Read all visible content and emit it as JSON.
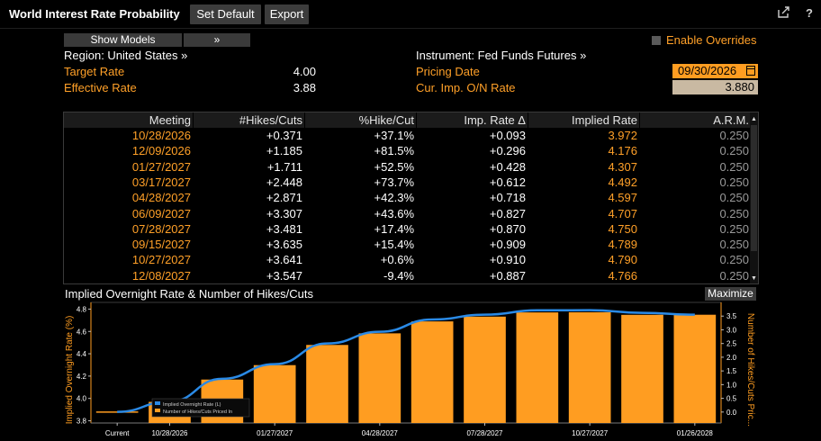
{
  "window": {
    "title": "World Interest Rate Probability",
    "buttons": {
      "set_default": "Set Default",
      "export": "Export"
    },
    "icons": [
      "export-icon",
      "help-icon"
    ],
    "help_glyph": "?"
  },
  "models": {
    "show_models": "Show Models",
    "expand": "»"
  },
  "overrides": {
    "label": "Enable Overrides",
    "checked": false
  },
  "summary": {
    "region_label": "Region: United States »",
    "target_rate_label": "Target Rate",
    "target_rate_value": "4.00",
    "effective_rate_label": "Effective Rate",
    "effective_rate_value": "3.88",
    "instrument_label": "Instrument: Fed Funds Futures »",
    "pricing_date_label": "Pricing Date",
    "pricing_date_value": "09/30/2026",
    "cur_imp_label": "Cur. Imp. O/N Rate",
    "cur_imp_value": "3.880"
  },
  "table": {
    "headers": [
      "Meeting",
      "#Hikes/Cuts",
      "%Hike/Cut",
      "Imp. Rate Δ",
      "Implied Rate",
      "A.R.M."
    ],
    "rows": [
      [
        "10/28/2026",
        "+0.371",
        "+37.1%",
        "+0.093",
        "3.972",
        "0.250"
      ],
      [
        "12/09/2026",
        "+1.185",
        "+81.5%",
        "+0.296",
        "4.176",
        "0.250"
      ],
      [
        "01/27/2027",
        "+1.711",
        "+52.5%",
        "+0.428",
        "4.307",
        "0.250"
      ],
      [
        "03/17/2027",
        "+2.448",
        "+73.7%",
        "+0.612",
        "4.492",
        "0.250"
      ],
      [
        "04/28/2027",
        "+2.871",
        "+42.3%",
        "+0.718",
        "4.597",
        "0.250"
      ],
      [
        "06/09/2027",
        "+3.307",
        "+43.6%",
        "+0.827",
        "4.707",
        "0.250"
      ],
      [
        "07/28/2027",
        "+3.481",
        "+17.4%",
        "+0.870",
        "4.750",
        "0.250"
      ],
      [
        "09/15/2027",
        "+3.635",
        "+15.4%",
        "+0.909",
        "4.789",
        "0.250"
      ],
      [
        "10/27/2027",
        "+3.641",
        "+0.6%",
        "+0.910",
        "4.790",
        "0.250"
      ],
      [
        "12/08/2027",
        "+3.547",
        "-9.4%",
        "+0.887",
        "4.766",
        "0.250"
      ]
    ]
  },
  "chart_panel": {
    "title": "Implied Overnight Rate & Number of Hikes/Cuts",
    "maximize": "Maximize"
  },
  "colors": {
    "accent": "#ffa028",
    "bar": "#ff9d21",
    "line": "#2a8ae6",
    "header_bg": "#1b1b1b"
  },
  "chart_data": {
    "type": "bar",
    "categories": [
      "Current",
      "10/28/2026",
      "12/09/2026",
      "01/27/2027",
      "03/17/2027",
      "04/28/2027",
      "06/09/2027",
      "07/28/2027",
      "09/15/2027",
      "10/27/2027",
      "12/08/2027",
      "01/26/2028"
    ],
    "x_tick_labels": [
      "Current",
      "10/28/2026",
      "01/27/2027",
      "04/28/2027",
      "07/28/2027",
      "10/27/2027",
      "01/26/2028"
    ],
    "series": [
      {
        "name": "Implied Overnight Rate (L)",
        "type": "line",
        "axis": "left",
        "values": [
          3.88,
          3.972,
          4.176,
          4.307,
          4.492,
          4.597,
          4.707,
          4.75,
          4.789,
          4.79,
          4.766,
          4.75
        ]
      },
      {
        "name": "Number of Hikes/Cuts Priced In",
        "type": "bar",
        "axis": "right",
        "values": [
          0,
          0.371,
          1.185,
          1.711,
          2.448,
          2.871,
          3.307,
          3.481,
          3.635,
          3.641,
          3.547,
          3.55
        ]
      }
    ],
    "ylabel_left": "Implied Overnight Rate (%)",
    "ylabel_right": "Number of Hikes/Cuts Pric...",
    "ylim_left": [
      3.78,
      4.86
    ],
    "yticks_left": [
      "3.8",
      "4.0",
      "4.2",
      "4.4",
      "4.6",
      "4.8"
    ],
    "ylim_right": [
      -0.4,
      4.0
    ],
    "yticks_right": [
      "0.0",
      "0.5",
      "1.0",
      "1.5",
      "2.0",
      "2.5",
      "3.0",
      "3.5"
    ],
    "legend_placement": "bottom-left",
    "grid": false
  }
}
